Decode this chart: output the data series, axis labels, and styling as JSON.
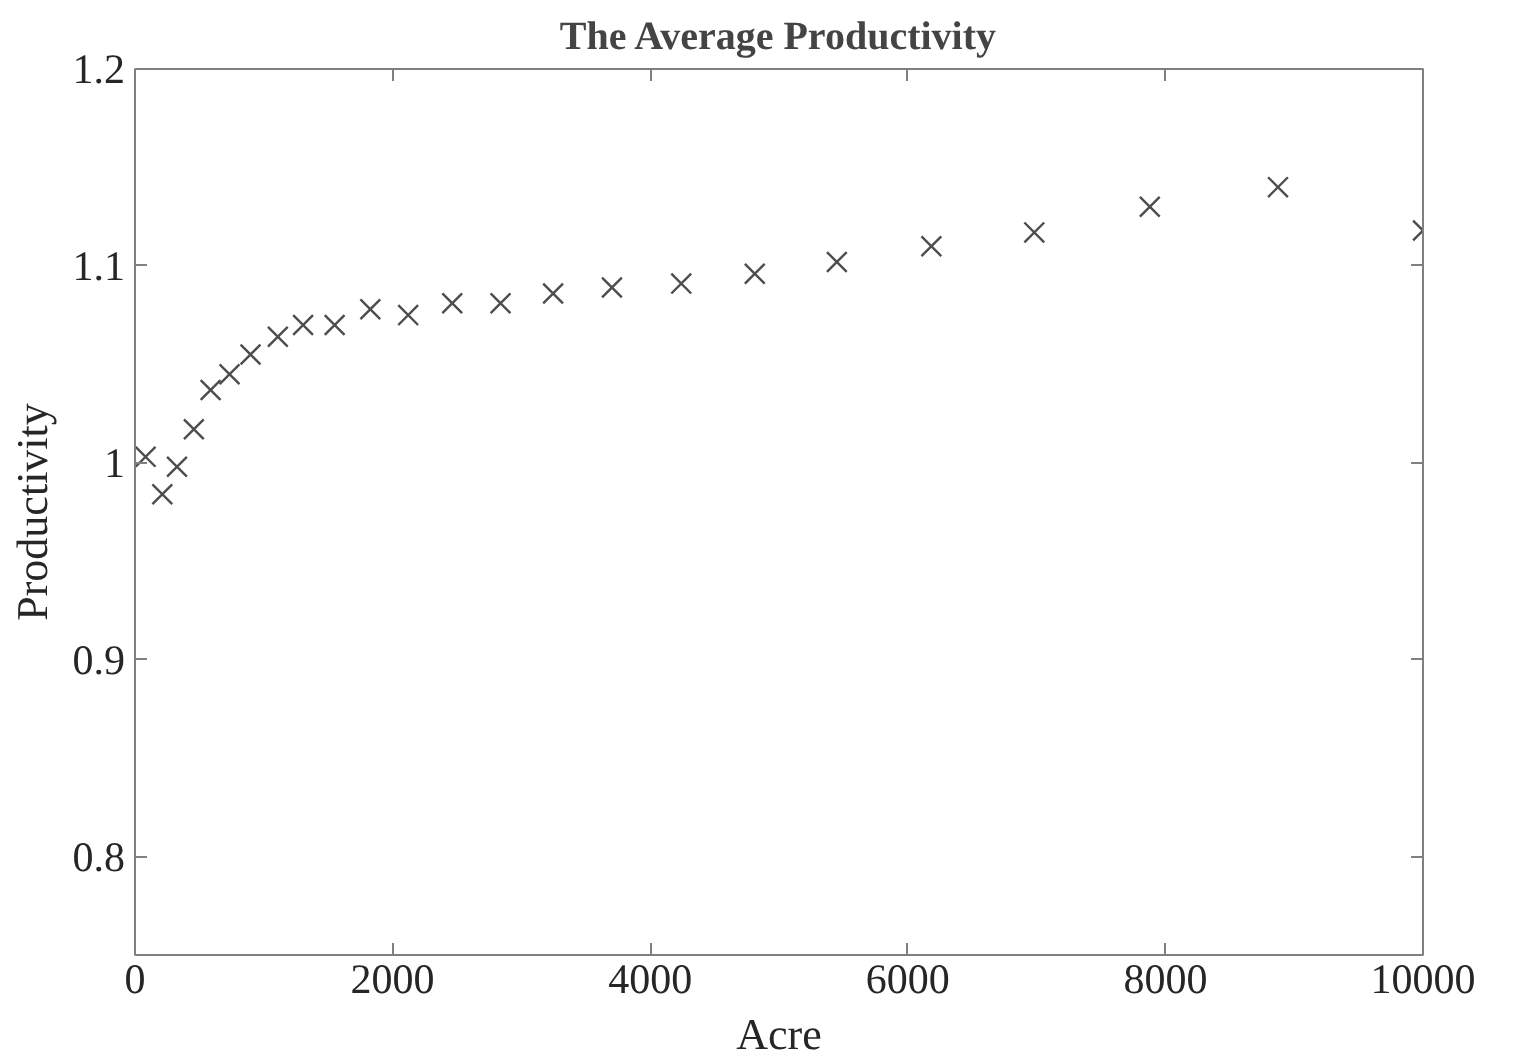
{
  "chart_data": {
    "type": "scatter",
    "title": "The Average Productivity",
    "xlabel": "Acre",
    "ylabel": "Productivity",
    "x": [
      82,
      212,
      326,
      457,
      587,
      734,
      897,
      1109,
      1305,
      1550,
      1827,
      2121,
      2463,
      2838,
      3246,
      3703,
      4241,
      4812,
      5449,
      6183,
      6982,
      7879,
      8874,
      10000
    ],
    "series": [
      {
        "color": "#4d4d4d",
        "values": [
          1.003,
          0.984,
          0.998,
          1.017,
          1.037,
          1.045,
          1.055,
          1.064,
          1.07,
          1.07,
          1.078,
          1.075,
          1.081,
          1.081,
          1.086,
          1.089,
          1.091,
          1.096,
          1.102,
          1.11,
          1.117,
          1.13,
          1.14,
          1.118
        ]
      }
    ],
    "marker": "cross",
    "xlim": [
      0,
      10000
    ],
    "ylim": [
      0.75,
      1.2
    ],
    "xticks": [
      0,
      2000,
      4000,
      6000,
      8000,
      10000
    ],
    "yticks": [
      0.8,
      0.9,
      1,
      1.1,
      1.2
    ],
    "grid": false
  }
}
